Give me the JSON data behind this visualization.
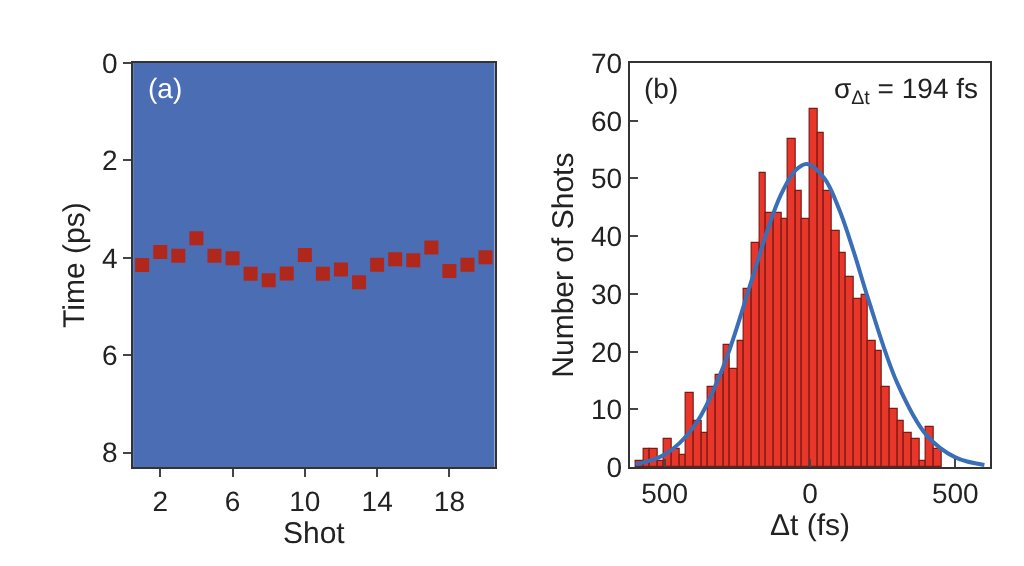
{
  "chart_data": [
    {
      "type": "scatter",
      "xlabel": "Shot",
      "ylabel": "Time (ps)",
      "annotations": [
        "(a)"
      ],
      "x": [
        1,
        2,
        3,
        4,
        5,
        6,
        7,
        8,
        9,
        10,
        11,
        12,
        13,
        14,
        15,
        16,
        17,
        18,
        19,
        20
      ],
      "series": [
        {
          "color": "#b0281c",
          "values": [
            4.15,
            3.88,
            3.96,
            3.6,
            3.96,
            4.01,
            4.33,
            4.46,
            4.32,
            3.94,
            4.33,
            4.24,
            4.5,
            4.14,
            4.03,
            4.05,
            3.79,
            4.27,
            4.14,
            3.99
          ]
        }
      ],
      "marker": "square",
      "xlim": [
        0.5,
        20.5
      ],
      "xticks": [
        2,
        6,
        10,
        14,
        18
      ],
      "ylim": [
        8.3,
        0
      ],
      "yticks": [
        0,
        2,
        4,
        6,
        8
      ],
      "grid": false
    },
    {
      "type": "histogram",
      "xlabel": "Δt (fs)",
      "ylabel": "Number of Shots",
      "annotations": [
        "(b)",
        "σ$_{Δt}$ = 194 fs"
      ],
      "bins": [
        -600,
        -575,
        -550,
        -525,
        -500,
        -475,
        -450,
        -425,
        -400,
        -375,
        -350,
        -325,
        -300,
        -275,
        -250,
        -225,
        -200,
        -175,
        -150,
        -125,
        -100,
        -75,
        -50,
        -25,
        0,
        25,
        50,
        75,
        100,
        125,
        150,
        175,
        200,
        225,
        250,
        275,
        300,
        325,
        350,
        375,
        400,
        425,
        450
      ],
      "values": [
        1,
        3,
        3,
        1,
        5,
        3,
        2,
        13,
        8,
        6,
        14,
        16,
        21,
        17,
        22,
        31,
        39,
        51,
        44,
        44,
        43,
        57,
        48,
        43,
        62,
        58,
        48,
        41,
        37,
        33,
        29,
        30,
        22,
        20,
        14,
        10,
        8,
        6,
        5,
        1,
        7,
        3
      ],
      "color": "#e8372a",
      "series": [
        {
          "type": "line",
          "color": "#3a6fb8",
          "x": [
            -600,
            -500,
            -400,
            -300,
            -200,
            -150,
            -100,
            -50,
            -10,
            50,
            100,
            150,
            200,
            300,
            400,
            500,
            600
          ],
          "values": [
            0.5,
            2.2,
            7.0,
            17.2,
            32.5,
            40.5,
            47.2,
            51.4,
            52.5,
            50.0,
            44.7,
            37.4,
            29.2,
            14.6,
            5.6,
            1.7,
            0.4
          ]
        }
      ],
      "xlim": [
        -620,
        620
      ],
      "xticks": [
        {
          "value": -500,
          "label": "500"
        },
        0,
        500
      ],
      "ylim": [
        0,
        70
      ],
      "yticks": [
        0,
        10,
        20,
        30,
        40,
        50,
        60,
        70
      ],
      "grid": false
    }
  ]
}
